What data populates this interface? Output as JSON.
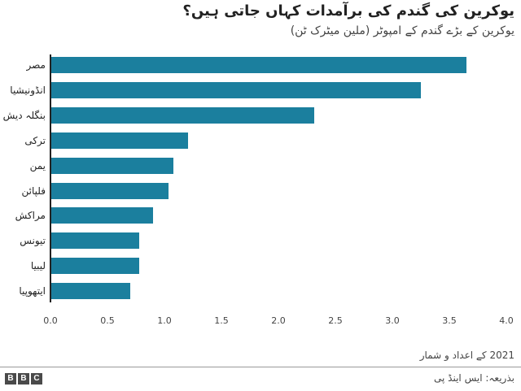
{
  "header": {
    "title": "یوکرین کی گندم کی برآمدات کہاں جاتی ہیں؟",
    "subtitle": "یوکرین کے بڑے گندم کے امپوٹر (ملین میٹرک ٹن)"
  },
  "footer": {
    "note": "2021 کے اعداد و شمار",
    "source": "بذریعہ: ایس اینڈ پی",
    "logo": [
      "B",
      "B",
      "C"
    ]
  },
  "colors": {
    "bar": "#1b7f9e",
    "axis": "#222222"
  },
  "chart_data": {
    "type": "bar",
    "orientation": "horizontal",
    "title": "یوکرین کی گندم کی برآمدات کہاں جاتی ہیں؟",
    "subtitle": "یوکرین کے بڑے گندم کے امپوٹر (ملین میٹرک ٹن)",
    "xlabel": "",
    "ylabel": "",
    "categories": [
      "مصر",
      "انڈونیشیا",
      "بنگلہ دیش",
      "ترکی",
      "یمن",
      "فلپائن",
      "مراکش",
      "تیونس",
      "لیبیا",
      "ایتھوپیا"
    ],
    "values": [
      3.64,
      3.24,
      2.31,
      1.2,
      1.07,
      1.03,
      0.89,
      0.77,
      0.77,
      0.69
    ],
    "xlim": [
      0,
      4.0
    ],
    "xticks": [
      "0.0",
      "0.5",
      "1.0",
      "1.5",
      "2.0",
      "2.5",
      "3.0",
      "3.5",
      "4.0"
    ],
    "grid": false,
    "legend": null
  }
}
